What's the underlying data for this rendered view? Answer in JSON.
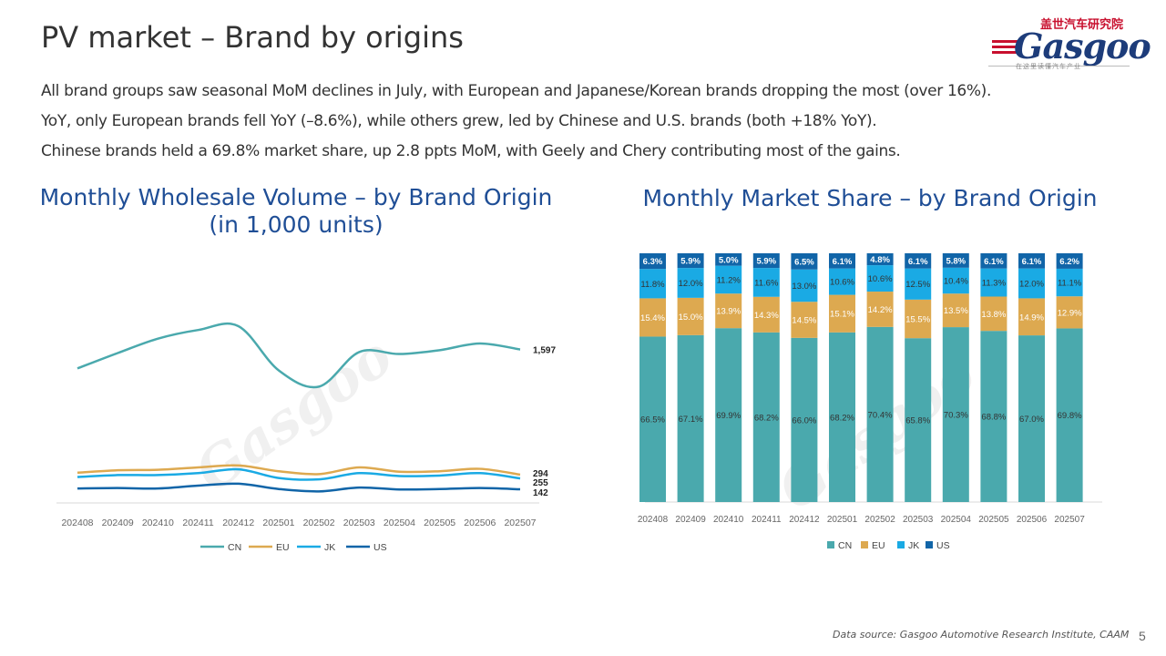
{
  "header": {
    "title": "PV market – Brand by origins"
  },
  "logo": {
    "chinese_text": "盖世汽车研究院",
    "brand": "Gasgoo",
    "tagline": "在这里读懂汽车产业"
  },
  "bullets": [
    "All brand groups saw seasonal MoM declines in July, with European and Japanese/Korean brands dropping the most (over 16%).",
    "YoY, only European brands fell YoY (–8.6%), while others grew, led by Chinese and U.S. brands (both +18% YoY).",
    "Chinese brands held a 69.8% market share, up 2.8 ppts MoM, with Geely and Chery contributing most of the gains."
  ],
  "colors": {
    "CN": "#4aa9ad",
    "EU": "#dda950",
    "JK": "#1aaae4",
    "US": "#1165a8",
    "title_blue": "#1f4e96"
  },
  "chart_data": [
    {
      "type": "line",
      "title_line1": "Monthly Wholesale Volume – by Brand Origin",
      "title_line2": "(in 1,000 units)",
      "categories": [
        "202408",
        "202409",
        "202410",
        "202411",
        "202412",
        "202501",
        "202502",
        "202503",
        "202504",
        "202505",
        "202506",
        "202507"
      ],
      "series": [
        {
          "name": "CN",
          "values": [
            1400,
            1560,
            1710,
            1800,
            1840,
            1380,
            1210,
            1570,
            1550,
            1590,
            1660,
            1597
          ],
          "end_label": "1,597"
        },
        {
          "name": "EU",
          "values": [
            315,
            340,
            345,
            370,
            390,
            330,
            300,
            370,
            325,
            330,
            355,
            294
          ],
          "end_label": "294"
        },
        {
          "name": "JK",
          "values": [
            270,
            290,
            290,
            310,
            350,
            260,
            245,
            310,
            280,
            285,
            310,
            255
          ],
          "end_label": "255"
        },
        {
          "name": "US",
          "values": [
            150,
            155,
            150,
            180,
            200,
            145,
            120,
            160,
            140,
            145,
            155,
            142
          ],
          "end_label": "142"
        }
      ],
      "ylim": [
        0,
        2200
      ]
    },
    {
      "type": "bar",
      "stacked": true,
      "title": "Monthly Market Share – by Brand Origin",
      "categories": [
        "202408",
        "202409",
        "202410",
        "202411",
        "202412",
        "202501",
        "202502",
        "202503",
        "202504",
        "202505",
        "202506",
        "202507"
      ],
      "series": [
        {
          "name": "CN",
          "values": [
            66.5,
            67.1,
            69.9,
            68.2,
            66.0,
            68.2,
            70.4,
            65.8,
            70.3,
            68.8,
            67.0,
            69.8
          ],
          "labels": [
            "66.5%",
            "67.1%",
            "69.9%",
            "68.2%",
            "66.0%",
            "68.2%",
            "70.4%",
            "65.8%",
            "70.3%",
            "68.8%",
            "67.0%",
            "69.8%"
          ]
        },
        {
          "name": "EU",
          "values": [
            15.4,
            15.0,
            13.9,
            14.3,
            14.5,
            15.1,
            14.2,
            15.5,
            13.5,
            13.8,
            14.9,
            12.9
          ],
          "labels": [
            "15.4%",
            "15.0%",
            "13.9%",
            "14.3%",
            "14.5%",
            "15.1%",
            "14.2%",
            "15.5%",
            "13.5%",
            "13.8%",
            "14.9%",
            "12.9%"
          ]
        },
        {
          "name": "JK",
          "values": [
            11.8,
            12.0,
            11.2,
            11.6,
            13.0,
            10.6,
            10.6,
            12.5,
            10.4,
            11.3,
            12.0,
            11.1
          ],
          "labels": [
            "11.8%",
            "12.0%",
            "11.2%",
            "11.6%",
            "13.0%",
            "10.6%",
            "10.6%",
            "12.5%",
            "10.4%",
            "11.3%",
            "12.0%",
            "11.1%"
          ]
        },
        {
          "name": "US",
          "values": [
            6.3,
            5.9,
            5.0,
            5.9,
            6.5,
            6.1,
            4.8,
            6.1,
            5.8,
            6.1,
            6.1,
            6.2
          ],
          "labels": [
            "6.3%",
            "5.9%",
            "5.0%",
            "5.9%",
            "6.5%",
            "6.1%",
            "4.8%",
            "6.1%",
            "5.8%",
            "6.1%",
            "6.1%",
            "6.2%"
          ]
        }
      ],
      "ylim": [
        0,
        100
      ]
    }
  ],
  "footer": {
    "source": "Data source: Gasgoo Automotive Research Institute, CAAM",
    "page": "5"
  }
}
